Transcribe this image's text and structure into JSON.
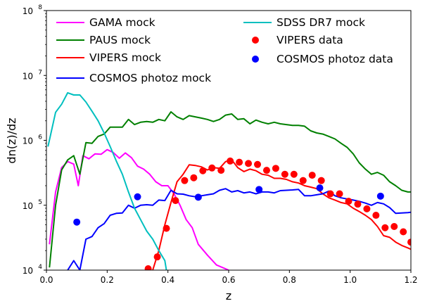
{
  "chart_data": {
    "type": "line",
    "title": "",
    "xlabel": "z",
    "ylabel": "dn(z)/dz",
    "xlim": [
      0.0,
      1.2
    ],
    "ylim_log10": [
      4,
      8
    ],
    "yscale": "log",
    "grid": false,
    "legend_placement": "top",
    "x_ticks": [
      0.0,
      0.2,
      0.4,
      0.6,
      0.8,
      1.0,
      1.2
    ],
    "x_tick_labels": [
      "0.0",
      "0.2",
      "0.4",
      "0.6",
      "0.8",
      "1.0",
      "1.2"
    ],
    "y_ticks_log10": [
      4,
      5,
      6,
      7,
      8
    ],
    "y_tick_bases": [
      "10",
      "10",
      "10",
      "10",
      "10"
    ],
    "y_tick_exponents": [
      "4",
      "5",
      "6",
      "7",
      "8"
    ],
    "series": [
      {
        "name": "GAMA mock",
        "style": "line",
        "color": "#ff00ff",
        "x": [
          0.01,
          0.03,
          0.05,
          0.07,
          0.09,
          0.105,
          0.12,
          0.14,
          0.16,
          0.18,
          0.2,
          0.22,
          0.24,
          0.26,
          0.28,
          0.3,
          0.32,
          0.34,
          0.36,
          0.38,
          0.4,
          0.42,
          0.44,
          0.46,
          0.48,
          0.5,
          0.53,
          0.56,
          0.6
        ],
        "y": [
          25000,
          160000,
          380000,
          470000,
          430000,
          200000,
          580000,
          520000,
          620000,
          610000,
          720000,
          650000,
          530000,
          640000,
          540000,
          400000,
          360000,
          300000,
          230000,
          200000,
          200000,
          150000,
          100000,
          60000,
          45000,
          25000,
          17000,
          12000,
          10000
        ]
      },
      {
        "name": "PAUS mock",
        "style": "line",
        "color": "#008000",
        "x": [
          0.01,
          0.03,
          0.05,
          0.07,
          0.09,
          0.11,
          0.13,
          0.15,
          0.17,
          0.19,
          0.21,
          0.23,
          0.25,
          0.27,
          0.29,
          0.31,
          0.33,
          0.35,
          0.37,
          0.39,
          0.41,
          0.43,
          0.45,
          0.47,
          0.49,
          0.51,
          0.53,
          0.55,
          0.57,
          0.59,
          0.61,
          0.63,
          0.65,
          0.67,
          0.69,
          0.71,
          0.73,
          0.75,
          0.77,
          0.79,
          0.81,
          0.83,
          0.85,
          0.87,
          0.89,
          0.91,
          0.93,
          0.95,
          0.97,
          0.99,
          1.01,
          1.03,
          1.05,
          1.07,
          1.09,
          1.11,
          1.13,
          1.15,
          1.17,
          1.19,
          1.2
        ],
        "y": [
          11000,
          100000,
          350000,
          500000,
          580000,
          300000,
          920000,
          900000,
          1150000,
          1250000,
          1600000,
          1600000,
          1600000,
          2100000,
          1750000,
          1900000,
          1950000,
          1900000,
          2100000,
          2000000,
          2750000,
          2300000,
          2100000,
          2400000,
          2300000,
          2200000,
          2100000,
          1950000,
          2100000,
          2450000,
          2550000,
          2100000,
          2150000,
          1800000,
          2050000,
          1900000,
          1800000,
          1900000,
          1800000,
          1750000,
          1700000,
          1700000,
          1650000,
          1400000,
          1300000,
          1250000,
          1150000,
          1050000,
          900000,
          780000,
          620000,
          450000,
          360000,
          300000,
          320000,
          290000,
          230000,
          200000,
          170000,
          160000,
          160000
        ]
      },
      {
        "name": "VIPERS mock",
        "style": "line",
        "color": "#ff0000",
        "x": [
          0.35,
          0.37,
          0.39,
          0.41,
          0.43,
          0.45,
          0.47,
          0.49,
          0.51,
          0.53,
          0.55,
          0.57,
          0.59,
          0.61,
          0.63,
          0.65,
          0.67,
          0.69,
          0.71,
          0.73,
          0.75,
          0.77,
          0.79,
          0.81,
          0.83,
          0.85,
          0.87,
          0.89,
          0.91,
          0.93,
          0.95,
          0.97,
          0.99,
          1.01,
          1.03,
          1.05,
          1.07,
          1.09,
          1.11,
          1.13,
          1.15,
          1.17,
          1.19,
          1.2
        ],
        "y": [
          10000,
          20000,
          50000,
          110000,
          230000,
          300000,
          420000,
          410000,
          390000,
          350000,
          380000,
          370000,
          470000,
          500000,
          380000,
          330000,
          360000,
          340000,
          300000,
          290000,
          260000,
          260000,
          250000,
          230000,
          220000,
          200000,
          190000,
          180000,
          150000,
          130000,
          120000,
          110000,
          105000,
          90000,
          80000,
          70000,
          60000,
          47000,
          34000,
          32000,
          27000,
          24000,
          22000,
          21000
        ]
      },
      {
        "name": "COSMOS photoz mock",
        "style": "line",
        "color": "#0000ff",
        "x": [
          0.07,
          0.09,
          0.11,
          0.13,
          0.15,
          0.17,
          0.19,
          0.21,
          0.23,
          0.25,
          0.27,
          0.29,
          0.31,
          0.33,
          0.35,
          0.37,
          0.39,
          0.41,
          0.43,
          0.45,
          0.47,
          0.49,
          0.51,
          0.53,
          0.55,
          0.57,
          0.59,
          0.61,
          0.63,
          0.65,
          0.67,
          0.69,
          0.71,
          0.73,
          0.75,
          0.77,
          0.79,
          0.81,
          0.83,
          0.85,
          0.87,
          0.89,
          0.91,
          0.93,
          0.95,
          0.97,
          0.99,
          1.01,
          1.03,
          1.05,
          1.07,
          1.09,
          1.11,
          1.13,
          1.15,
          1.17,
          1.19,
          1.2
        ],
        "y": [
          10000,
          14000,
          10000,
          30000,
          33000,
          45000,
          52000,
          70000,
          75000,
          76000,
          100000,
          90000,
          100000,
          102000,
          100000,
          120000,
          118000,
          170000,
          150000,
          148000,
          140000,
          135000,
          140000,
          145000,
          150000,
          170000,
          180000,
          160000,
          168000,
          155000,
          160000,
          150000,
          160000,
          160000,
          155000,
          168000,
          170000,
          172000,
          175000,
          140000,
          140000,
          145000,
          150000,
          165000,
          140000,
          130000,
          125000,
          120000,
          115000,
          108000,
          100000,
          110000,
          105000,
          92000,
          75000,
          76000,
          77000,
          78000
        ]
      },
      {
        "name": "SDSS DR7 mock",
        "style": "line",
        "color": "#00bfbf",
        "x": [
          0.005,
          0.03,
          0.05,
          0.07,
          0.09,
          0.11,
          0.13,
          0.15,
          0.17,
          0.19,
          0.21,
          0.23,
          0.25,
          0.27,
          0.29,
          0.31,
          0.33,
          0.35,
          0.37,
          0.39,
          0.395
        ],
        "y": [
          800000,
          2700000,
          3600000,
          5400000,
          5000000,
          5000000,
          3900000,
          2800000,
          2000000,
          1300000,
          800000,
          480000,
          300000,
          160000,
          90000,
          60000,
          40000,
          30000,
          20000,
          14000,
          10000
        ]
      },
      {
        "name": "VIPERS data",
        "style": "scatter",
        "color": "#ff0000",
        "x": [
          0.335,
          0.365,
          0.395,
          0.425,
          0.455,
          0.485,
          0.515,
          0.545,
          0.575,
          0.605,
          0.635,
          0.665,
          0.695,
          0.725,
          0.755,
          0.785,
          0.815,
          0.845,
          0.875,
          0.905,
          0.935,
          0.965,
          0.995,
          1.025,
          1.055,
          1.085,
          1.115,
          1.145,
          1.175,
          1.2
        ],
        "y": [
          10500,
          16000,
          44000,
          118000,
          240000,
          265000,
          340000,
          375000,
          345000,
          480000,
          460000,
          440000,
          425000,
          345000,
          370000,
          300000,
          300000,
          240000,
          290000,
          240000,
          150000,
          150000,
          115000,
          104000,
          88000,
          70000,
          45000,
          47000,
          39000,
          27000
        ]
      },
      {
        "name": "COSMOS photoz data",
        "style": "scatter",
        "color": "#0000ff",
        "x": [
          0.1,
          0.3,
          0.5,
          0.7,
          0.9,
          1.1
        ],
        "y": [
          55000,
          135000,
          133000,
          175000,
          185000,
          138000
        ]
      }
    ]
  }
}
